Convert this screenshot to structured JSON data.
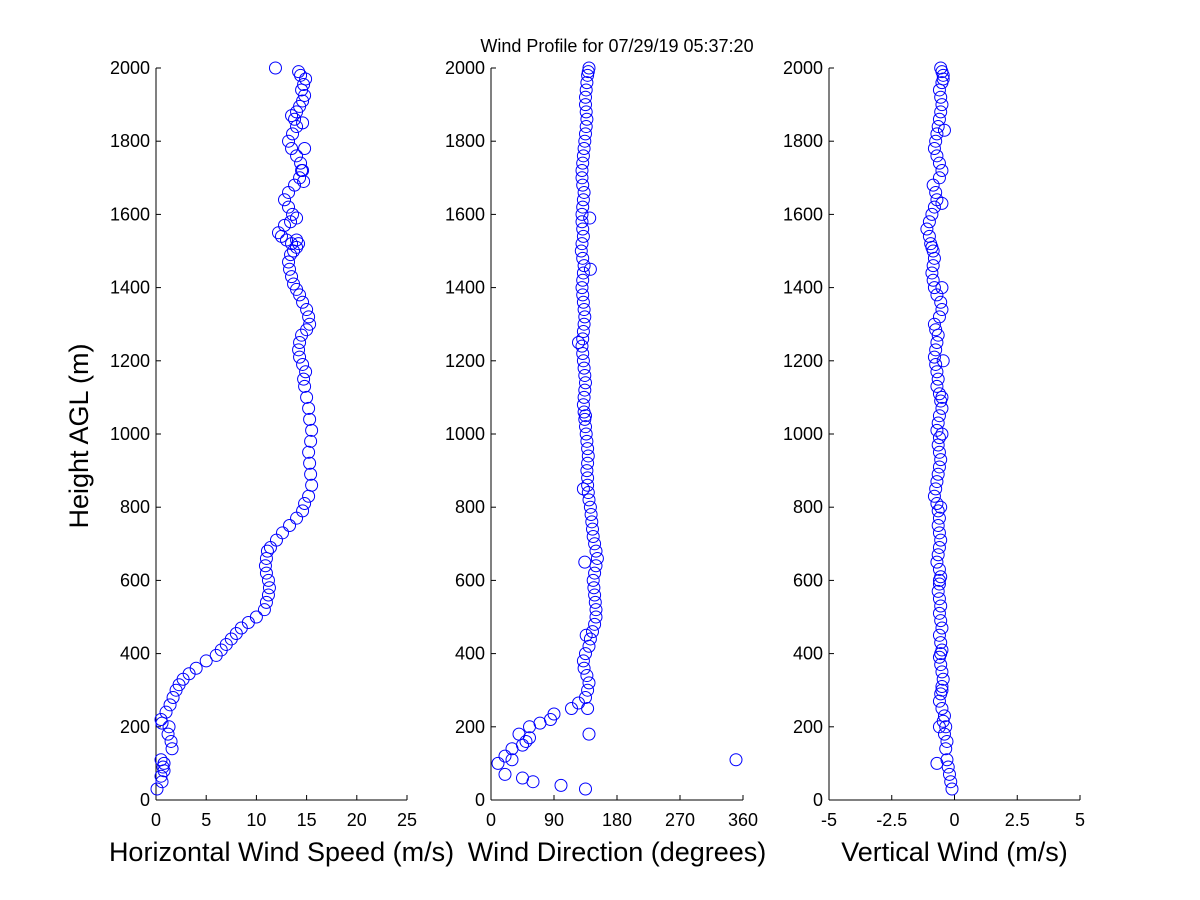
{
  "title": "Wind Profile for  07/29/19 05:37:20",
  "ylabel": "Height AGL (m)",
  "colors": {
    "marker": "#0000ff",
    "axis": "#000000",
    "background": "#ffffff"
  },
  "chart_data": [
    {
      "type": "scatter",
      "xlabel": "Horizontal Wind Speed (m/s)",
      "xlim": [
        0,
        25
      ],
      "xticks": [
        0,
        5,
        10,
        15,
        20,
        25
      ],
      "xtick_labels": [
        "0",
        "5",
        "10",
        "15",
        "20",
        "25"
      ],
      "ylim": [
        0,
        2000
      ],
      "yticks": [
        0,
        200,
        400,
        600,
        800,
        1000,
        1200,
        1400,
        1600,
        1800,
        2000
      ],
      "ytick_labels": [
        "0",
        "200",
        "400",
        "600",
        "800",
        "1000",
        "1200",
        "1400",
        "1600",
        "1800",
        "2000"
      ],
      "series": [
        {
          "name": "speed",
          "x": [
            0.1,
            0.6,
            0.5,
            0.8,
            0.7,
            0.8,
            0.5,
            1.6,
            1.5,
            1.2,
            1.3,
            0.6,
            0.5,
            1.0,
            1.4,
            1.7,
            2.0,
            2.3,
            2.7,
            3.3,
            4.0,
            5.0,
            6.0,
            6.5,
            7.0,
            7.5,
            8.0,
            8.5,
            9.2,
            10.0,
            10.8,
            11.0,
            11.2,
            11.3,
            11.2,
            11.0,
            10.9,
            11.0,
            11.1,
            11.4,
            12.0,
            12.6,
            13.3,
            14.0,
            14.6,
            14.8,
            15.2,
            15.5,
            15.4,
            15.3,
            15.2,
            15.4,
            15.5,
            15.3,
            15.2,
            15.0,
            14.8,
            14.7,
            14.9,
            14.6,
            14.3,
            14.2,
            14.3,
            14.5,
            15.0,
            15.3,
            15.2,
            15.0,
            14.6,
            14.3,
            14.0,
            13.7,
            13.5,
            13.3,
            13.2,
            13.4,
            13.7,
            14.0,
            14.2,
            14.0,
            13.5,
            13.0,
            12.5,
            12.2,
            12.8,
            13.4,
            14.0,
            13.6,
            13.2,
            12.8,
            13.2,
            13.8,
            14.3,
            14.6,
            14.4,
            14.0,
            13.5,
            13.2,
            13.6,
            14.0,
            13.8,
            13.5,
            14.0,
            14.3,
            14.6,
            14.8,
            14.5,
            14.7,
            14.9,
            14.4,
            14.2,
            14.6,
            14.8,
            14.5,
            14.7,
            11.9
          ],
          "y": [
            30,
            50,
            65,
            80,
            90,
            100,
            110,
            140,
            160,
            180,
            200,
            210,
            220,
            240,
            260,
            280,
            300,
            315,
            330,
            345,
            360,
            380,
            395,
            410,
            425,
            440,
            455,
            470,
            485,
            500,
            520,
            540,
            560,
            580,
            600,
            620,
            640,
            660,
            680,
            690,
            710,
            730,
            750,
            770,
            790,
            810,
            830,
            860,
            890,
            920,
            950,
            980,
            1010,
            1040,
            1070,
            1100,
            1130,
            1150,
            1170,
            1190,
            1210,
            1230,
            1250,
            1270,
            1285,
            1300,
            1320,
            1340,
            1360,
            1380,
            1395,
            1410,
            1430,
            1450,
            1470,
            1490,
            1500,
            1510,
            1520,
            1530,
            1520,
            1530,
            1540,
            1550,
            1570,
            1580,
            1590,
            1600,
            1620,
            1640,
            1660,
            1680,
            1700,
            1720,
            1740,
            1760,
            1780,
            1800,
            1820,
            1840,
            1860,
            1870,
            1880,
            1895,
            1910,
            1925,
            1940,
            1955,
            1970,
            1980,
            1990,
            1850,
            1780,
            1720,
            1690,
            2000
          ]
        }
      ]
    },
    {
      "type": "scatter",
      "xlabel": "Wind Direction (degrees)",
      "xlim": [
        0,
        360
      ],
      "xticks": [
        0,
        90,
        180,
        270,
        360
      ],
      "xtick_labels": [
        "0",
        "90",
        "180",
        "270",
        "360"
      ],
      "ylim": [
        0,
        2000
      ],
      "yticks": [
        0,
        200,
        400,
        600,
        800,
        1000,
        1200,
        1400,
        1600,
        1800,
        2000
      ],
      "ytick_labels": [
        "0",
        "200",
        "400",
        "600",
        "800",
        "1000",
        "1200",
        "1400",
        "1600",
        "1800",
        "2000"
      ],
      "series": [
        {
          "name": "direction",
          "x": [
            135,
            100,
            60,
            45,
            20,
            10,
            30,
            20,
            350,
            30,
            45,
            50,
            55,
            40,
            55,
            70,
            85,
            90,
            115,
            125,
            135,
            138,
            140,
            137,
            133,
            132,
            135,
            140,
            142,
            145,
            148,
            150,
            150,
            149,
            148,
            147,
            146,
            148,
            150,
            152,
            150,
            148,
            146,
            145,
            144,
            143,
            142,
            140,
            139,
            138,
            138,
            137,
            138,
            139,
            138,
            137,
            136,
            135,
            134,
            133,
            132,
            133,
            134,
            135,
            134,
            133,
            132,
            131,
            130,
            131,
            132,
            133,
            134,
            133,
            132,
            131,
            130,
            131,
            132,
            133,
            131,
            129,
            130,
            132,
            131,
            130,
            130,
            131,
            132,
            133,
            131,
            130,
            130,
            131,
            132,
            133,
            134,
            135,
            136,
            137,
            136,
            135,
            135,
            136,
            137,
            138,
            139,
            140,
            141,
            142,
            125,
            135,
            132,
            134,
            136,
            138,
            140
          ],
          "y": [
            30,
            40,
            50,
            60,
            70,
            100,
            110,
            120,
            110,
            140,
            150,
            160,
            170,
            180,
            200,
            210,
            220,
            235,
            250,
            265,
            280,
            300,
            320,
            340,
            360,
            380,
            400,
            420,
            440,
            460,
            480,
            500,
            520,
            540,
            560,
            580,
            600,
            620,
            640,
            660,
            680,
            700,
            720,
            740,
            760,
            780,
            800,
            820,
            840,
            860,
            880,
            900,
            920,
            940,
            960,
            980,
            1000,
            1020,
            1040,
            1060,
            1080,
            1100,
            1120,
            1140,
            1160,
            1180,
            1200,
            1220,
            1240,
            1260,
            1280,
            1300,
            1320,
            1340,
            1360,
            1380,
            1400,
            1420,
            1440,
            1460,
            1480,
            1500,
            1520,
            1540,
            1560,
            1580,
            1600,
            1620,
            1640,
            1660,
            1680,
            1700,
            1720,
            1740,
            1760,
            1780,
            1800,
            1820,
            1840,
            1860,
            1880,
            1900,
            1920,
            1940,
            1960,
            1980,
            1990,
            2000,
            1590,
            1450,
            1250,
            1050,
            850,
            650,
            450,
            250,
            180
          ]
        }
      ]
    },
    {
      "type": "scatter",
      "xlabel": "Vertical Wind (m/s)",
      "xlim": [
        -5,
        5
      ],
      "xticks": [
        -5,
        -2.5,
        0,
        2.5,
        5
      ],
      "xtick_labels": [
        "-5",
        "-2.5",
        "0",
        "2.5",
        "5"
      ],
      "ylim": [
        0,
        2000
      ],
      "yticks": [
        0,
        200,
        400,
        600,
        800,
        1000,
        1200,
        1400,
        1600,
        1800,
        2000
      ],
      "ytick_labels": [
        "0",
        "200",
        "400",
        "600",
        "800",
        "1000",
        "1200",
        "1400",
        "1600",
        "1800",
        "2000"
      ],
      "series": [
        {
          "name": "vertical",
          "x": [
            -0.1,
            -0.15,
            -0.2,
            -0.25,
            -0.3,
            -0.35,
            -0.3,
            -0.4,
            -0.35,
            -0.45,
            -0.4,
            -0.5,
            -0.6,
            -0.55,
            -0.5,
            -0.45,
            -0.5,
            -0.55,
            -0.6,
            -0.5,
            -0.55,
            -0.6,
            -0.5,
            -0.55,
            -0.6,
            -0.55,
            -0.6,
            -0.65,
            -0.6,
            -0.55,
            -0.6,
            -0.7,
            -0.65,
            -0.6,
            -0.55,
            -0.6,
            -0.65,
            -0.6,
            -0.65,
            -0.7,
            -0.8,
            -0.75,
            -0.7,
            -0.65,
            -0.6,
            -0.55,
            -0.6,
            -0.65,
            -0.6,
            -0.7,
            -0.65,
            -0.6,
            -0.5,
            -0.55,
            -0.6,
            -0.7,
            -0.65,
            -0.7,
            -0.75,
            -0.8,
            -0.75,
            -0.7,
            -0.65,
            -0.75,
            -0.8,
            -0.6,
            -0.5,
            -0.55,
            -0.7,
            -0.8,
            -0.85,
            -0.9,
            -0.85,
            -0.8,
            -0.85,
            -0.9,
            -0.95,
            -1.0,
            -1.1,
            -1.0,
            -0.9,
            -0.8,
            -0.7,
            -0.75,
            -0.85,
            -0.6,
            -0.5,
            -0.6,
            -0.7,
            -0.8,
            -0.75,
            -0.7,
            -0.65,
            -0.6,
            -0.55,
            -0.5,
            -0.55,
            -0.6,
            -0.5,
            -0.45,
            -0.5,
            -0.55,
            -0.5,
            -0.45,
            -0.5,
            -0.55,
            -0.6,
            -0.55,
            -0.5,
            -0.6,
            -0.7,
            -0.5,
            -0.4,
            -0.45,
            -0.5
          ],
          "y": [
            30,
            50,
            70,
            90,
            110,
            140,
            160,
            180,
            200,
            215,
            230,
            250,
            270,
            290,
            310,
            330,
            350,
            370,
            390,
            410,
            430,
            450,
            470,
            490,
            510,
            530,
            550,
            570,
            590,
            610,
            630,
            650,
            670,
            690,
            710,
            730,
            750,
            770,
            790,
            810,
            830,
            850,
            870,
            890,
            910,
            930,
            950,
            970,
            990,
            1010,
            1030,
            1050,
            1070,
            1090,
            1110,
            1130,
            1150,
            1170,
            1190,
            1210,
            1230,
            1250,
            1270,
            1285,
            1300,
            1320,
            1340,
            1360,
            1380,
            1400,
            1420,
            1440,
            1460,
            1480,
            1500,
            1510,
            1520,
            1540,
            1560,
            1580,
            1600,
            1620,
            1640,
            1660,
            1680,
            1700,
            1720,
            1740,
            1760,
            1780,
            1800,
            1820,
            1840,
            1860,
            1880,
            1900,
            1920,
            1940,
            1960,
            1980,
            1990,
            2000,
            1400,
            1200,
            1000,
            800,
            600,
            400,
            300,
            200,
            100,
            1630,
            1830,
            1970,
            1100
          ]
        }
      ]
    }
  ]
}
